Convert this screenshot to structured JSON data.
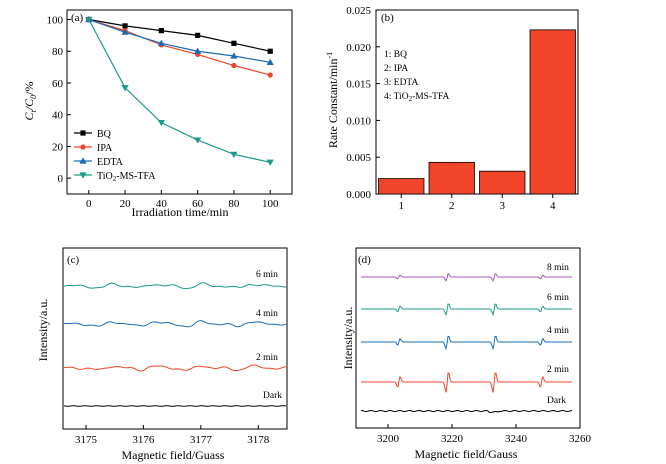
{
  "chart_data": [
    {
      "panel": "(a)",
      "type": "line",
      "xlabel": "Irradiation time/min",
      "ylabel_parts": {
        "c": "C",
        "t": "t",
        "slash": "/",
        "c0": "C",
        "zero": "0",
        "pct": "/%"
      },
      "x": [
        0,
        20,
        40,
        60,
        80,
        100
      ],
      "xlim": [
        -12,
        112
      ],
      "ylim": [
        -10,
        106
      ],
      "xticks": [
        0,
        20,
        40,
        60,
        80,
        100
      ],
      "yticks": [
        0,
        20,
        40,
        60,
        80,
        100
      ],
      "legend_position": "bottom-left",
      "series": [
        {
          "name": "BQ",
          "marker": "square",
          "color": "#000000",
          "values": [
            100,
            96,
            93,
            90,
            85,
            80
          ]
        },
        {
          "name": "IPA",
          "marker": "circle",
          "color": "#f0442b",
          "values": [
            100,
            93,
            84,
            78,
            71,
            65
          ]
        },
        {
          "name": "EDTA",
          "marker": "triangle-up",
          "color": "#1b6bb5",
          "values": [
            100,
            92,
            85,
            80,
            77,
            73
          ]
        },
        {
          "name_parts": [
            "TiO",
            "2",
            "-MS-TFA"
          ],
          "marker": "triangle-down",
          "color": "#1a9a8a",
          "values": [
            100,
            57,
            35,
            24,
            15,
            10
          ]
        }
      ]
    },
    {
      "panel": "(b)",
      "type": "bar",
      "ylabel": "Rate Constant/min",
      "ylabel_sup": "-1",
      "categories": [
        "1",
        "2",
        "3",
        "4"
      ],
      "values": [
        0.0021,
        0.0043,
        0.0031,
        0.0223
      ],
      "ylim": [
        0,
        0.025
      ],
      "yticks": [
        "0.000",
        "0.005",
        "0.010",
        "0.015",
        "0.020",
        "0.025"
      ],
      "bar_color": "#f0442b",
      "notes": [
        "1: BQ",
        "2: IPA",
        "3: EDTA"
      ],
      "note4_parts": [
        "4: TiO",
        "2",
        "-MS-TFA"
      ]
    },
    {
      "panel": "(c)",
      "type": "line",
      "xlabel": "Magnetic field/Guass",
      "ylabel": "Intensity/a.u.",
      "xlim": [
        3174.6,
        3178.5
      ],
      "xticks": [
        "3175",
        "3176",
        "3177",
        "3178"
      ],
      "series": [
        {
          "name": "6 min",
          "color": "#1a9a8a"
        },
        {
          "name": "4 min",
          "color": "#1b6bb5"
        },
        {
          "name": "2 min",
          "color": "#f0442b"
        },
        {
          "name": "Dark",
          "color": "#000000"
        }
      ]
    },
    {
      "panel": "(d)",
      "type": "line",
      "xlabel": "Magnetic field/Gauss",
      "ylabel": "Intensity/a.u.",
      "xlim": [
        3190,
        3260
      ],
      "xticks": [
        "3200",
        "3220",
        "3240",
        "3260"
      ],
      "series": [
        {
          "name": "8 min",
          "color": "#a45ab5"
        },
        {
          "name": "6 min",
          "color": "#1a9a8a"
        },
        {
          "name": "4 min",
          "color": "#1b6bb5"
        },
        {
          "name": "2 min",
          "color": "#f0442b"
        },
        {
          "name": "Dark",
          "color": "#000000"
        }
      ]
    }
  ]
}
